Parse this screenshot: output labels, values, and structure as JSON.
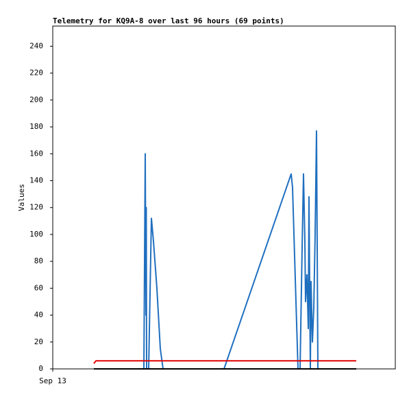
{
  "chart_data": {
    "type": "line",
    "title": "Telemetry for KQ9A-8 over last 96 hours (69 points)",
    "y_label": "Values",
    "xlim": [
      0,
      125
    ],
    "xticks": [
      {
        "value": 0,
        "label": "Sep 13"
      }
    ],
    "ylim": [
      0,
      255
    ],
    "yticks": [
      0,
      20,
      40,
      60,
      80,
      100,
      120,
      140,
      160,
      180,
      200,
      220,
      240
    ],
    "grid": false,
    "series": [
      {
        "color": "#1f6fbf",
        "x": [
          33.25,
          33.5,
          33.75,
          34,
          34.125,
          34.25,
          35,
          36,
          36.75,
          38,
          39.25,
          40.25,
          62.5,
          87,
          87.5,
          88.75,
          89.5,
          90.25,
          91,
          91.5,
          92,
          92.25,
          92.75,
          93.25,
          93.5,
          93.75,
          94,
          94.25,
          94.75,
          95.25,
          95.75,
          96.25,
          96.5,
          96.75
        ],
        "values": [
          0,
          80,
          160,
          40,
          120,
          0,
          0,
          112,
          95,
          60,
          15,
          0,
          0,
          145,
          135,
          50,
          0,
          0,
          90,
          145,
          95,
          50,
          70,
          30,
          128,
          60,
          0,
          65,
          20,
          45,
          100,
          177,
          90,
          0
        ]
      },
      {
        "color": "#e00000",
        "x": [
          15,
          15.75,
          110.75
        ],
        "values": [
          4,
          6,
          6
        ]
      },
      {
        "color": "#000000",
        "x": [
          15,
          110.75
        ],
        "values": [
          0,
          0
        ]
      }
    ]
  }
}
